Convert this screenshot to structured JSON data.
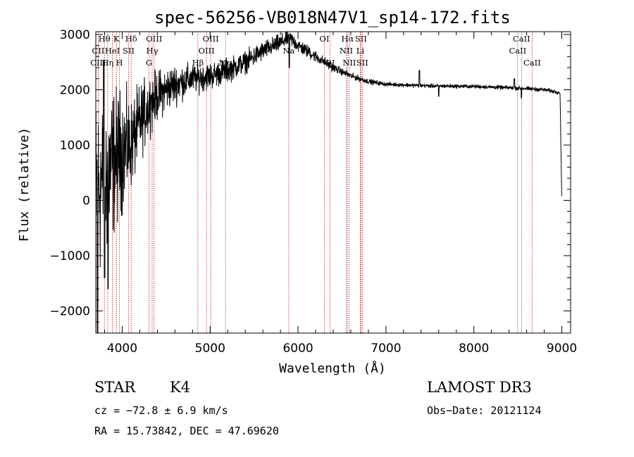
{
  "chart_data": {
    "type": "line",
    "title": "spec-56256-VB018N47V1_sp14-172.fits",
    "xlabel": "Wavelength (Å)",
    "ylabel": "Flux (relative)",
    "xlim": [
      3700,
      9100
    ],
    "ylim": [
      -2400,
      3050
    ],
    "xticks": [
      4000,
      5000,
      6000,
      7000,
      8000,
      9000
    ],
    "yticks": [
      -2000,
      -1000,
      0,
      1000,
      2000,
      3000
    ],
    "xtick_labels": [
      "4000",
      "5000",
      "6000",
      "7000",
      "8000",
      "9000"
    ],
    "ytick_labels": [
      "−2000",
      "−1000",
      "0",
      "1000",
      "2000",
      "3000"
    ],
    "line_color": "#000000",
    "marker_color": "#b22222",
    "series": [
      {
        "name": "flux",
        "continuum": [
          [
            3700,
            150
          ],
          [
            3800,
            400
          ],
          [
            3900,
            700
          ],
          [
            4000,
            900
          ],
          [
            4100,
            1000
          ],
          [
            4200,
            1400
          ],
          [
            4300,
            1700
          ],
          [
            4400,
            1900
          ],
          [
            4600,
            2100
          ],
          [
            4800,
            2200
          ],
          [
            5000,
            2250
          ],
          [
            5200,
            2350
          ],
          [
            5400,
            2500
          ],
          [
            5600,
            2700
          ],
          [
            5800,
            2850
          ],
          [
            5900,
            2950
          ],
          [
            6000,
            2800
          ],
          [
            6200,
            2600
          ],
          [
            6400,
            2400
          ],
          [
            6600,
            2250
          ],
          [
            6800,
            2150
          ],
          [
            7000,
            2100
          ],
          [
            7500,
            2070
          ],
          [
            8000,
            2060
          ],
          [
            8500,
            2030
          ],
          [
            8800,
            2000
          ],
          [
            8980,
            1950
          ],
          [
            9000,
            0
          ]
        ],
        "noise_envelope": [
          [
            3700,
            2000
          ],
          [
            3900,
            1500
          ],
          [
            4100,
            900
          ],
          [
            4400,
            500
          ],
          [
            4800,
            300
          ],
          [
            5400,
            220
          ],
          [
            6000,
            150
          ],
          [
            6500,
            70
          ],
          [
            7000,
            40
          ],
          [
            9000,
            40
          ]
        ],
        "features": [
          [
            3720,
            -2400
          ],
          [
            3790,
            2500
          ],
          [
            3800,
            -1400
          ],
          [
            3840,
            -1600
          ],
          [
            4330,
            1900
          ],
          [
            5900,
            2400
          ],
          [
            6130,
            2750
          ],
          [
            6280,
            2500
          ],
          [
            7380,
            2350
          ],
          [
            7600,
            1880
          ],
          [
            8460,
            2200
          ],
          [
            8540,
            1850
          ]
        ]
      }
    ],
    "spectral_lines": [
      {
        "label": "Hθ",
        "wavelength": 3798,
        "row": 0
      },
      {
        "label": "CII",
        "wavelength": 3727,
        "row": 1
      },
      {
        "label": "CIII",
        "wavelength": 3727,
        "row": 2
      },
      {
        "label": "K",
        "wavelength": 3934,
        "row": 0
      },
      {
        "label": "HeI",
        "wavelength": 3889,
        "row": 1
      },
      {
        "label": "Hη",
        "wavelength": 3835,
        "row": 2
      },
      {
        "label": "SII",
        "wavelength": 4072,
        "row": 1
      },
      {
        "label": "H",
        "wavelength": 3969,
        "row": 2
      },
      {
        "label": "Hδ",
        "wavelength": 4102,
        "row": 0
      },
      {
        "label": "OIII",
        "wavelength": 4363,
        "row": 0
      },
      {
        "label": "Hγ",
        "wavelength": 4341,
        "row": 1
      },
      {
        "label": "G",
        "wavelength": 4305,
        "row": 2
      },
      {
        "label": "OIII",
        "wavelength": 5007,
        "row": 0
      },
      {
        "label": "OIII",
        "wavelength": 4959,
        "row": 1
      },
      {
        "label": "Hβ",
        "wavelength": 4861,
        "row": 2
      },
      {
        "label": "Mg",
        "wavelength": 5175,
        "row": 2
      },
      {
        "label": "Na",
        "wavelength": 5894,
        "row": 1
      },
      {
        "label": "OI",
        "wavelength": 6300,
        "row": 0
      },
      {
        "label": "OI",
        "wavelength": 6364,
        "row": 2
      },
      {
        "label": "Hα",
        "wavelength": 6563,
        "row": 0
      },
      {
        "label": "NII",
        "wavelength": 6548,
        "row": 1
      },
      {
        "label": "NII",
        "wavelength": 6583,
        "row": 2
      },
      {
        "label": "SII",
        "wavelength": 6716,
        "row": 0
      },
      {
        "label": "Li",
        "wavelength": 6708,
        "row": 1
      },
      {
        "label": "SII",
        "wavelength": 6731,
        "row": 2
      },
      {
        "label": "CaII",
        "wavelength": 8542,
        "row": 0
      },
      {
        "label": "CaII",
        "wavelength": 8498,
        "row": 1
      },
      {
        "label": "CaII",
        "wavelength": 8662,
        "row": 2
      }
    ]
  },
  "info": {
    "class": "STAR",
    "subclass": "K4",
    "survey": "LAMOST DR3",
    "cz": "cz = −72.8 ± 6.9 km/s",
    "obs_date": "Obs−Date: 20121124",
    "coords": "RA =  15.73842, DEC =  47.69620"
  }
}
